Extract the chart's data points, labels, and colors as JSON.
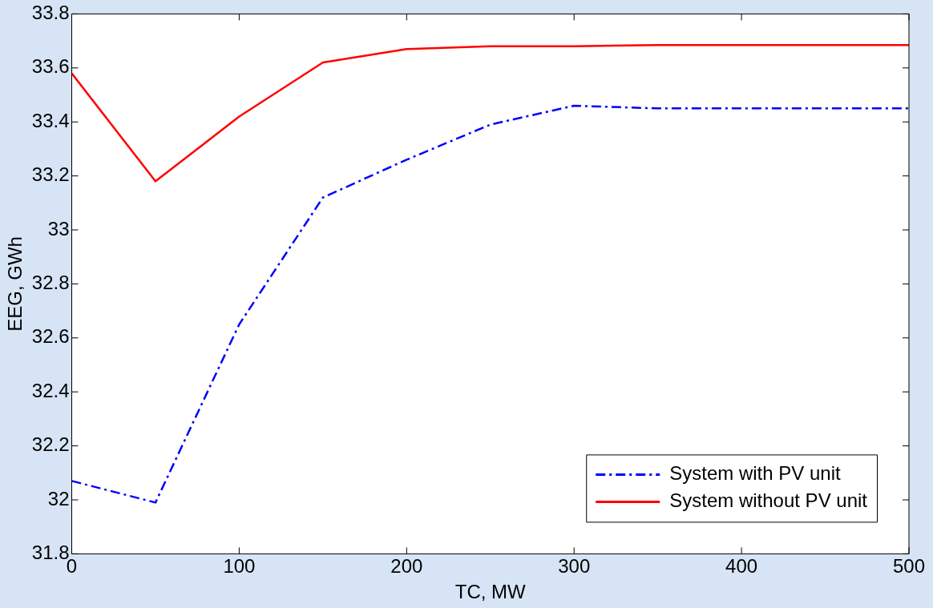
{
  "chart_data": {
    "type": "line",
    "xlabel": "TC, MW",
    "ylabel": "EEG, GWh",
    "x": [
      0,
      50,
      100,
      150,
      200,
      250,
      300,
      350,
      400,
      450,
      500
    ],
    "series": [
      {
        "name": "System with PV unit",
        "color": "#0000ff",
        "line_style": "dashdot",
        "values": [
          32.07,
          31.99,
          32.65,
          33.12,
          33.26,
          33.39,
          33.46,
          33.45,
          33.45,
          33.45,
          33.45
        ]
      },
      {
        "name": "System without PV unit",
        "color": "#ff0000",
        "line_style": "solid",
        "values": [
          33.58,
          33.18,
          33.42,
          33.62,
          33.67,
          33.68,
          33.68,
          33.685,
          33.685,
          33.685,
          33.685
        ]
      }
    ],
    "xlim": [
      0,
      500
    ],
    "xticks": [
      0,
      100,
      200,
      300,
      400,
      500
    ],
    "ylim": [
      31.8,
      33.8
    ],
    "yticks": [
      31.8,
      32,
      32.2,
      32.4,
      32.6,
      32.8,
      33,
      33.2,
      33.4,
      33.6,
      33.8
    ],
    "grid": false,
    "legend": "bottom right",
    "marker": "none"
  }
}
